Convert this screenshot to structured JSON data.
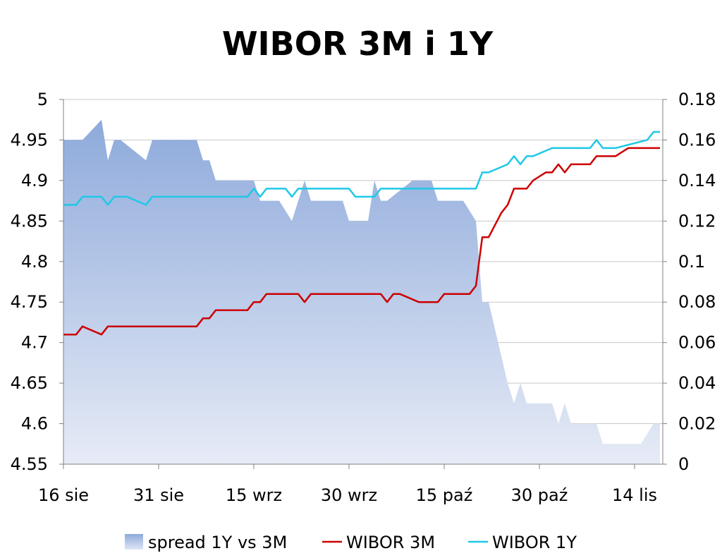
{
  "chart_data": {
    "type": "line",
    "title": "WIBOR 3M i 1Y",
    "xlabel": "",
    "ylabel": "",
    "y_left": {
      "min": 4.55,
      "max": 5.0,
      "step": 0.05,
      "ticks": [
        "4.55",
        "4.6",
        "4.65",
        "4.7",
        "4.75",
        "4.8",
        "4.85",
        "4.9",
        "4.95",
        "5"
      ]
    },
    "y_right": {
      "min": 0,
      "max": 0.18,
      "step": 0.02,
      "ticks": [
        "0",
        "0.02",
        "0.04",
        "0.06",
        "0.08",
        "0.1",
        "0.12",
        "0.14",
        "0.16",
        "0.18"
      ]
    },
    "x_range": [
      "2011-08-16",
      "2011-11-18"
    ],
    "x_ticks": [
      {
        "date": "2011-08-16",
        "label": "16 sie"
      },
      {
        "date": "2011-08-31",
        "label": "31 sie"
      },
      {
        "date": "2011-09-15",
        "label": "15 wrz"
      },
      {
        "date": "2011-09-30",
        "label": "30 wrz"
      },
      {
        "date": "2011-10-15",
        "label": "15 paź"
      },
      {
        "date": "2011-10-30",
        "label": "30 paź"
      },
      {
        "date": "2011-11-14",
        "label": "14 lis"
      }
    ],
    "grid": true,
    "legend_position": "bottom",
    "series": [
      {
        "name": "spread 1Y vs 3M",
        "type": "area",
        "axis": "right",
        "color": "#8eaadb",
        "points": [
          [
            "2011-08-16",
            0.16
          ],
          [
            "2011-08-19",
            0.16
          ],
          [
            "2011-08-22",
            0.17
          ],
          [
            "2011-08-23",
            0.15
          ],
          [
            "2011-08-24",
            0.16
          ],
          [
            "2011-08-25",
            0.16
          ],
          [
            "2011-08-29",
            0.15
          ],
          [
            "2011-08-30",
            0.16
          ],
          [
            "2011-09-06",
            0.16
          ],
          [
            "2011-09-07",
            0.15
          ],
          [
            "2011-09-08",
            0.15
          ],
          [
            "2011-09-09",
            0.14
          ],
          [
            "2011-09-15",
            0.14
          ],
          [
            "2011-09-16",
            0.13
          ],
          [
            "2011-09-19",
            0.13
          ],
          [
            "2011-09-21",
            0.12
          ],
          [
            "2011-09-22",
            0.13
          ],
          [
            "2011-09-23",
            0.14
          ],
          [
            "2011-09-24",
            0.13
          ],
          [
            "2011-09-29",
            0.13
          ],
          [
            "2011-09-30",
            0.12
          ],
          [
            "2011-10-03",
            0.12
          ],
          [
            "2011-10-04",
            0.14
          ],
          [
            "2011-10-05",
            0.13
          ],
          [
            "2011-10-06",
            0.13
          ],
          [
            "2011-10-10",
            0.14
          ],
          [
            "2011-10-13",
            0.14
          ],
          [
            "2011-10-14",
            0.13
          ],
          [
            "2011-10-18",
            0.13
          ],
          [
            "2011-10-20",
            0.12
          ],
          [
            "2011-10-21",
            0.08
          ],
          [
            "2011-10-22",
            0.08
          ],
          [
            "2011-10-25",
            0.04
          ],
          [
            "2011-10-26",
            0.03
          ],
          [
            "2011-10-27",
            0.04
          ],
          [
            "2011-10-28",
            0.03
          ],
          [
            "2011-11-01",
            0.03
          ],
          [
            "2011-11-02",
            0.02
          ],
          [
            "2011-11-03",
            0.03
          ],
          [
            "2011-11-04",
            0.02
          ],
          [
            "2011-11-08",
            0.02
          ],
          [
            "2011-11-09",
            0.01
          ],
          [
            "2011-11-15",
            0.01
          ],
          [
            "2011-11-17",
            0.02
          ],
          [
            "2011-11-18",
            0.02
          ]
        ]
      },
      {
        "name": "WIBOR 3M",
        "type": "line",
        "axis": "left",
        "color": "#cc0000",
        "points": [
          [
            "2011-08-16",
            4.71
          ],
          [
            "2011-08-18",
            4.71
          ],
          [
            "2011-08-19",
            4.72
          ],
          [
            "2011-08-22",
            4.71
          ],
          [
            "2011-08-23",
            4.72
          ],
          [
            "2011-09-06",
            4.72
          ],
          [
            "2011-09-07",
            4.73
          ],
          [
            "2011-09-08",
            4.73
          ],
          [
            "2011-09-09",
            4.74
          ],
          [
            "2011-09-14",
            4.74
          ],
          [
            "2011-09-15",
            4.75
          ],
          [
            "2011-09-16",
            4.75
          ],
          [
            "2011-09-17",
            4.76
          ],
          [
            "2011-09-22",
            4.76
          ],
          [
            "2011-09-23",
            4.75
          ],
          [
            "2011-09-24",
            4.76
          ],
          [
            "2011-10-05",
            4.76
          ],
          [
            "2011-10-06",
            4.75
          ],
          [
            "2011-10-07",
            4.76
          ],
          [
            "2011-10-08",
            4.76
          ],
          [
            "2011-10-11",
            4.75
          ],
          [
            "2011-10-14",
            4.75
          ],
          [
            "2011-10-15",
            4.76
          ],
          [
            "2011-10-19",
            4.76
          ],
          [
            "2011-10-20",
            4.77
          ],
          [
            "2011-10-21",
            4.83
          ],
          [
            "2011-10-22",
            4.83
          ],
          [
            "2011-10-24",
            4.86
          ],
          [
            "2011-10-25",
            4.87
          ],
          [
            "2011-10-26",
            4.89
          ],
          [
            "2011-10-28",
            4.89
          ],
          [
            "2011-10-29",
            4.9
          ],
          [
            "2011-10-31",
            4.91
          ],
          [
            "2011-11-01",
            4.91
          ],
          [
            "2011-11-02",
            4.92
          ],
          [
            "2011-11-03",
            4.91
          ],
          [
            "2011-11-04",
            4.92
          ],
          [
            "2011-11-07",
            4.92
          ],
          [
            "2011-11-08",
            4.93
          ],
          [
            "2011-11-11",
            4.93
          ],
          [
            "2011-11-13",
            4.94
          ],
          [
            "2011-11-18",
            4.94
          ]
        ]
      },
      {
        "name": "WIBOR 1Y",
        "type": "line",
        "axis": "left",
        "color": "#1ec8e6",
        "points": [
          [
            "2011-08-16",
            4.87
          ],
          [
            "2011-08-18",
            4.87
          ],
          [
            "2011-08-19",
            4.88
          ],
          [
            "2011-08-22",
            4.88
          ],
          [
            "2011-08-23",
            4.87
          ],
          [
            "2011-08-24",
            4.88
          ],
          [
            "2011-08-26",
            4.88
          ],
          [
            "2011-08-29",
            4.87
          ],
          [
            "2011-08-30",
            4.88
          ],
          [
            "2011-09-14",
            4.88
          ],
          [
            "2011-09-15",
            4.89
          ],
          [
            "2011-09-16",
            4.88
          ],
          [
            "2011-09-17",
            4.89
          ],
          [
            "2011-09-20",
            4.89
          ],
          [
            "2011-09-21",
            4.88
          ],
          [
            "2011-09-22",
            4.89
          ],
          [
            "2011-09-30",
            4.89
          ],
          [
            "2011-10-01",
            4.88
          ],
          [
            "2011-10-04",
            4.88
          ],
          [
            "2011-10-05",
            4.89
          ],
          [
            "2011-10-20",
            4.89
          ],
          [
            "2011-10-21",
            4.91
          ],
          [
            "2011-10-22",
            4.91
          ],
          [
            "2011-10-25",
            4.92
          ],
          [
            "2011-10-26",
            4.93
          ],
          [
            "2011-10-27",
            4.92
          ],
          [
            "2011-10-28",
            4.93
          ],
          [
            "2011-10-29",
            4.93
          ],
          [
            "2011-11-01",
            4.94
          ],
          [
            "2011-11-07",
            4.94
          ],
          [
            "2011-11-08",
            4.95
          ],
          [
            "2011-11-09",
            4.94
          ],
          [
            "2011-11-11",
            4.94
          ],
          [
            "2011-11-16",
            4.95
          ],
          [
            "2011-11-17",
            4.96
          ],
          [
            "2011-11-18",
            4.96
          ]
        ]
      }
    ]
  }
}
